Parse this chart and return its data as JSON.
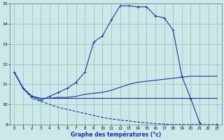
{
  "xlabel": "Graphe des températures (°c)",
  "background_color": "#cce8e8",
  "grid_color": "#99bbbb",
  "line_color": "#1a35a0",
  "xlim": [
    -0.5,
    23.5
  ],
  "ylim": [
    9,
    15
  ],
  "yticks": [
    9,
    10,
    11,
    12,
    13,
    14,
    15
  ],
  "xticks": [
    0,
    1,
    2,
    3,
    4,
    5,
    6,
    7,
    8,
    9,
    10,
    11,
    12,
    13,
    14,
    15,
    16,
    17,
    18,
    19,
    20,
    21,
    22,
    23
  ],
  "line1_x": [
    0,
    1,
    2,
    3,
    4,
    5,
    6,
    7,
    8,
    9,
    10,
    11,
    12,
    13,
    14,
    15,
    16,
    17,
    18,
    19,
    20,
    21,
    22,
    23
  ],
  "line1_y": [
    11.6,
    10.8,
    10.4,
    10.2,
    10.4,
    10.6,
    10.8,
    11.1,
    11.6,
    13.1,
    13.4,
    14.2,
    14.9,
    14.9,
    14.85,
    14.85,
    14.4,
    14.3,
    13.7,
    11.4,
    10.3,
    9.1,
    8.7,
    9.0
  ],
  "line2_x": [
    0,
    1,
    2,
    3,
    4,
    5,
    6,
    7,
    8,
    9,
    10,
    11,
    12,
    13,
    14,
    15,
    16,
    17,
    18,
    19,
    20,
    21,
    22,
    23
  ],
  "line2_y": [
    11.6,
    10.8,
    10.4,
    10.3,
    10.3,
    10.35,
    10.35,
    10.4,
    10.5,
    10.55,
    10.6,
    10.7,
    10.85,
    11.0,
    11.1,
    11.15,
    11.2,
    11.25,
    11.3,
    11.35,
    11.4,
    11.4,
    11.4,
    11.4
  ],
  "line3_x": [
    0,
    1,
    2,
    3,
    4,
    5,
    6,
    7,
    8,
    9,
    10,
    11,
    12,
    13,
    14,
    15,
    16,
    17,
    18,
    19,
    20,
    21,
    22,
    23
  ],
  "line3_y": [
    11.6,
    10.8,
    10.4,
    10.3,
    10.3,
    10.3,
    10.3,
    10.3,
    10.3,
    10.3,
    10.3,
    10.3,
    10.3,
    10.3,
    10.3,
    10.3,
    10.3,
    10.3,
    10.3,
    10.3,
    10.3,
    10.3,
    10.3,
    10.3
  ],
  "line4_x": [
    0,
    1,
    2,
    3,
    4,
    5,
    6,
    7,
    8,
    9,
    10,
    11,
    12,
    13,
    14,
    15,
    16,
    17,
    18,
    19,
    20,
    21,
    22,
    23
  ],
  "line4_y": [
    11.6,
    10.8,
    10.3,
    10.15,
    10.0,
    9.85,
    9.75,
    9.65,
    9.55,
    9.45,
    9.35,
    9.28,
    9.22,
    9.18,
    9.12,
    9.08,
    9.05,
    9.02,
    9.0,
    9.0,
    9.0,
    9.0,
    9.0,
    9.0
  ]
}
